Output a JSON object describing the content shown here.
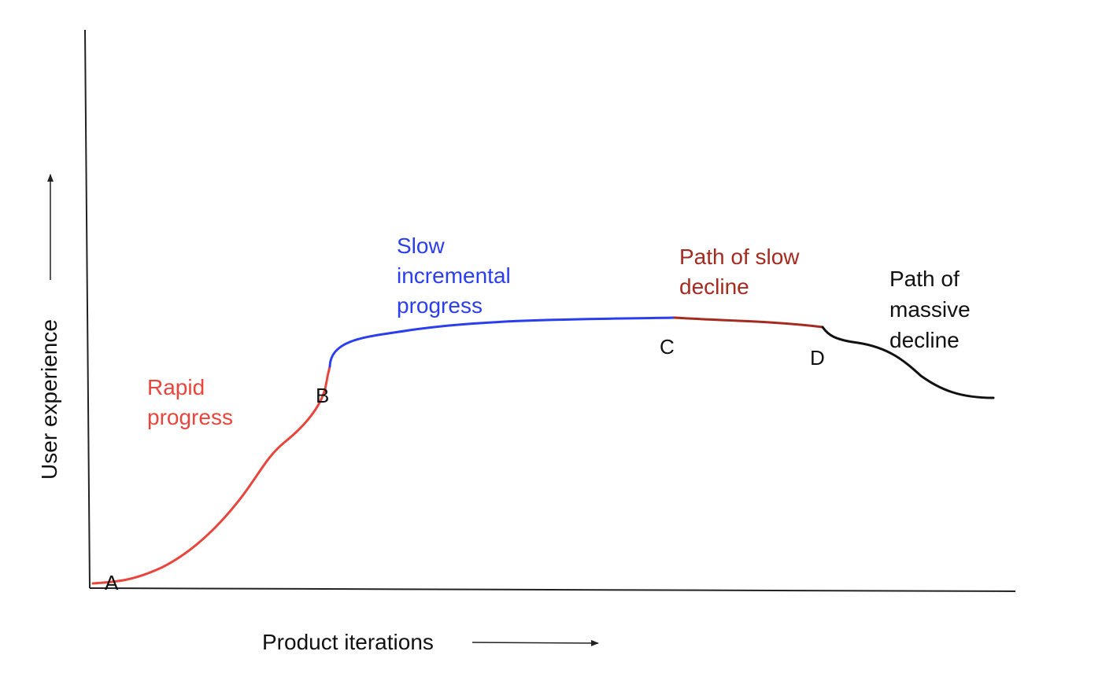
{
  "axes": {
    "x_label": "Product iterations",
    "y_label": "User experience"
  },
  "points": {
    "a": "A",
    "b": "B",
    "c": "C",
    "d": "D"
  },
  "segments": {
    "rapid": {
      "line1": "Rapid",
      "line2": "progress",
      "color": "#e8453c"
    },
    "slow": {
      "line1": "Slow",
      "line2": "incremental",
      "line3": "progress",
      "color": "#2a3ef0"
    },
    "slow_decline": {
      "line1": "Path of slow",
      "line2": "decline",
      "color": "#a52a1f"
    },
    "massive_decline": {
      "line1": "Path of",
      "line2": "massive",
      "line3": "decline",
      "color": "#111111"
    }
  }
}
